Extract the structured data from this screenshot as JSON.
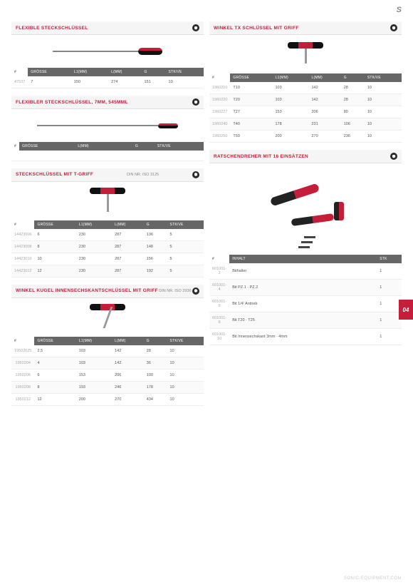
{
  "page_tab": "04",
  "top_logo": "S",
  "footer": "SONIC-EQUIPMENT.COM",
  "colors": {
    "accent": "#c41e3a",
    "header_bg": "#666",
    "row_alt": "#fafafa"
  },
  "sections": {
    "s1": {
      "title": "FLEXIBLE STECKSCHLÜSSEL",
      "cols": [
        "#",
        "GRÖSSE",
        "L1(MM)",
        "L(MM)",
        "G",
        "STK/VE"
      ],
      "rows": [
        [
          "47537",
          "7",
          "150",
          "274",
          "151",
          "10"
        ]
      ]
    },
    "s2": {
      "title": "FLEXIBLER STECKSCHLÜSSEL, 7MM, 545MML",
      "cols": [
        "#",
        "GRÖSSE",
        "L(MM)",
        "",
        "G",
        "STK/VE"
      ],
      "rows": []
    },
    "s3": {
      "title": "STECKSCHLÜSSEL MIT T-GRIFF",
      "din": "DIN NR. ISO 3125",
      "cols": [
        "#",
        "GRÖSSE",
        "L1(MM)",
        "L(MM)",
        "G",
        "STK/VE"
      ],
      "rows": [
        [
          "14423006",
          "6",
          "230",
          "287",
          "136",
          "5"
        ],
        [
          "14423008",
          "8",
          "230",
          "287",
          "148",
          "5"
        ],
        [
          "14423010",
          "10",
          "230",
          "287",
          "156",
          "5"
        ],
        [
          "14423012",
          "12",
          "230",
          "287",
          "192",
          "5"
        ]
      ]
    },
    "s4": {
      "title": "WINKEL KUGEL INNENSECHSKANTSCHLÜSSEL MIT GRIFF",
      "din": "DIN NR. ISO 2936",
      "cols": [
        "#",
        "GRÖSSE",
        "L1(MM)",
        "L(MM)",
        "G",
        "STK/VE"
      ],
      "rows": [
        [
          "19502025",
          "2.5",
          "103",
          "142",
          "28",
          "10"
        ],
        [
          "1950204",
          "4",
          "103",
          "142",
          "36",
          "10"
        ],
        [
          "1950206",
          "6",
          "153",
          "206",
          "100",
          "10"
        ],
        [
          "1950208",
          "8",
          "193",
          "246",
          "178",
          "10"
        ],
        [
          "1950212",
          "12",
          "200",
          "270",
          "434",
          "10"
        ]
      ]
    },
    "s5": {
      "title": "WINKEL TX SCHLÜSSEL MIT GRIFF",
      "cols": [
        "#",
        "GRÖSSE",
        "L1(MM)",
        "L(MM)",
        "G",
        "STK/VE"
      ],
      "rows": [
        [
          "1960210",
          "T10",
          "103",
          "142",
          "28",
          "10"
        ],
        [
          "1960220",
          "T20",
          "103",
          "142",
          "28",
          "10"
        ],
        [
          "1960227",
          "T27",
          "153",
          "206",
          "80",
          "10"
        ],
        [
          "1960240",
          "T40",
          "178",
          "231",
          "106",
          "10"
        ],
        [
          "1960250",
          "T50",
          "200",
          "270",
          "236",
          "10"
        ]
      ]
    },
    "s6": {
      "title": "RATSCHENDREHER MIT 16 EINSÄTZEN",
      "cols": [
        "#",
        "INHALT",
        "",
        "",
        "",
        "STK"
      ],
      "rows": [
        [
          "601001-2",
          "Bithalter",
          "",
          "",
          "",
          "1"
        ],
        [
          "601001-4",
          "Bit PZ.1 · PZ.2",
          "",
          "",
          "",
          "1"
        ],
        [
          "601001-6",
          "Bit 1/4' Antrieb",
          "",
          "",
          "",
          "1"
        ],
        [
          "601001-8",
          "Bit T20 · T25",
          "",
          "",
          "",
          "1"
        ],
        [
          "601001-10",
          "Bit Innensechskant 3mm · 4mm",
          "",
          "",
          "",
          "1"
        ]
      ]
    }
  }
}
